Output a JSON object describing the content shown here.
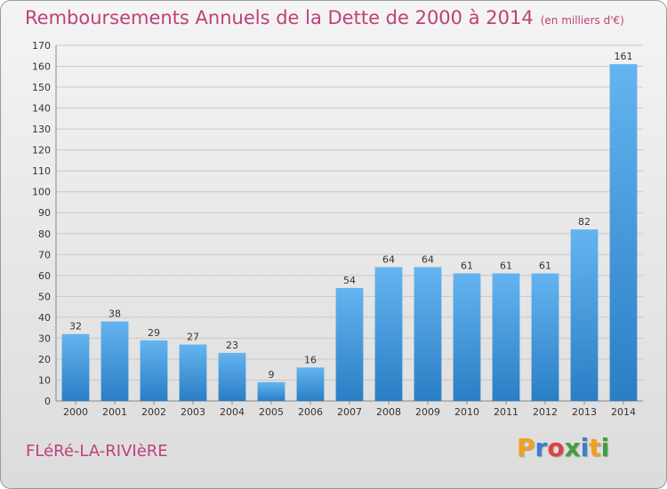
{
  "header": {
    "title": "Remboursements Annuels de la Dette de 2000 à 2014",
    "subtitle": "(en milliers d'€)"
  },
  "footer": {
    "commune": "FLéRé-LA-RIVIèRE",
    "logo_letters": [
      "P",
      "r",
      "o",
      "x",
      "i",
      "t",
      "i"
    ],
    "logo_colors": [
      "#f0a020",
      "#3a7fd0",
      "#e04040",
      "#40a040",
      "#3a7fd0",
      "#f0a020",
      "#40a040"
    ]
  },
  "chart_data": {
    "type": "bar",
    "title": "Remboursements Annuels de la Dette de 2000 à 2014",
    "subtitle": "(en milliers d'€)",
    "categories": [
      "2000",
      "2001",
      "2002",
      "2003",
      "2004",
      "2005",
      "2006",
      "2007",
      "2008",
      "2009",
      "2010",
      "2011",
      "2012",
      "2013",
      "2014"
    ],
    "values": [
      32,
      38,
      29,
      27,
      23,
      9,
      16,
      54,
      64,
      64,
      61,
      61,
      61,
      82,
      161
    ],
    "ylim": [
      0,
      170
    ],
    "yticks": [
      0,
      10,
      20,
      30,
      40,
      50,
      60,
      70,
      80,
      90,
      100,
      110,
      120,
      130,
      140,
      150,
      160,
      170
    ],
    "grid": true,
    "bar_color_light": "#64b4f0",
    "bar_color_dark": "#2a7ec4",
    "grid_color": "#c8c8c8"
  }
}
